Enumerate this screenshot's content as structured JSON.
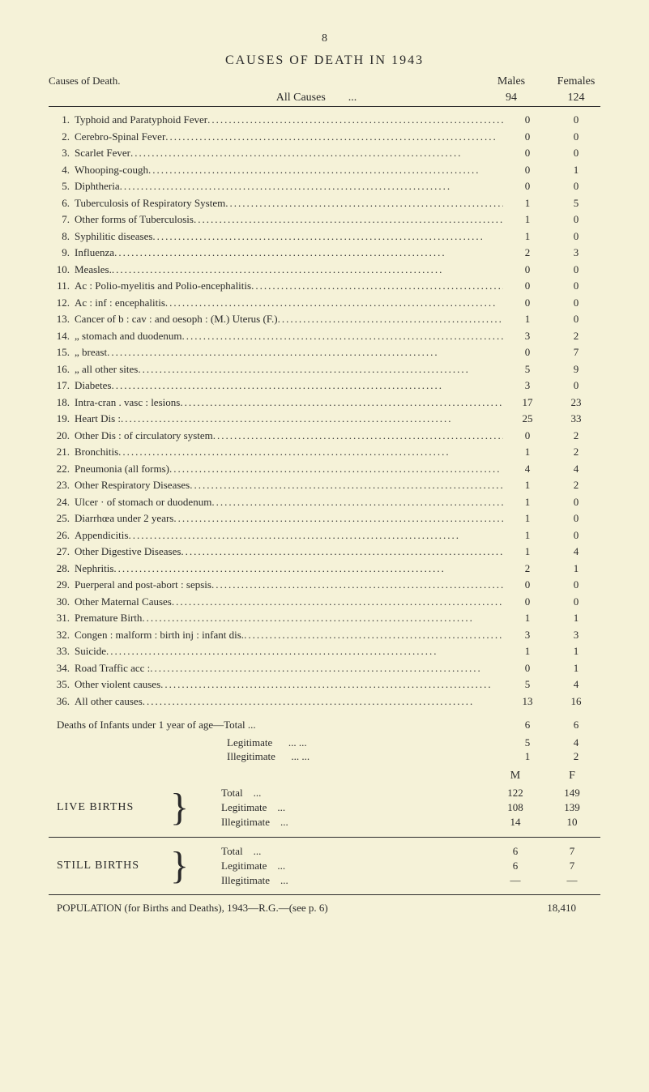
{
  "pageNumber": "8",
  "title": "CAUSES OF DEATH IN 1943",
  "causesLabel": "Causes of Death.",
  "colMales": "Males",
  "colFemales": "Females",
  "allCausesLabel": "All Causes",
  "allCausesDots": "...",
  "allCausesMales": "94",
  "allCausesFemales": "124",
  "rows": [
    {
      "n": "1.",
      "d": "Typhoid and Paratyphoid Fever",
      "m": "0",
      "f": "0"
    },
    {
      "n": "2.",
      "d": "Cerebro-Spinal Fever",
      "m": "0",
      "f": "0"
    },
    {
      "n": "3.",
      "d": "Scarlet Fever",
      "m": "0",
      "f": "0"
    },
    {
      "n": "4.",
      "d": "Whooping-cough",
      "m": "0",
      "f": "1"
    },
    {
      "n": "5.",
      "d": "Diphtheria",
      "m": "0",
      "f": "0"
    },
    {
      "n": "6.",
      "d": "Tuberculosis of Respiratory System",
      "m": "1",
      "f": "5"
    },
    {
      "n": "7.",
      "d": "Other forms of Tuberculosis",
      "m": "1",
      "f": "0"
    },
    {
      "n": "8.",
      "d": "Syphilitic diseases",
      "m": "1",
      "f": "0"
    },
    {
      "n": "9.",
      "d": "Influenza",
      "m": "2",
      "f": "3"
    },
    {
      "n": "10.",
      "d": "Measles.",
      "m": "0",
      "f": "0"
    },
    {
      "n": "11.",
      "d": "Ac : Polio-myelitis and Polio-encephalitis",
      "m": "0",
      "f": "0"
    },
    {
      "n": "12.",
      "d": "Ac : inf : encephalitis",
      "m": "0",
      "f": "0"
    },
    {
      "n": "13.",
      "d": "Cancer of b : cav : and oesoph : (M.) Uterus (F.)",
      "m": "1",
      "f": "0"
    },
    {
      "n": "14.",
      "d": "   „       stomach and duodenum",
      "m": "3",
      "f": "2"
    },
    {
      "n": "15.",
      "d": "   „       breast",
      "m": "0",
      "f": "7"
    },
    {
      "n": "16.",
      "d": "   „       all other sites",
      "m": "5",
      "f": "9"
    },
    {
      "n": "17.",
      "d": "Diabetes",
      "m": "3",
      "f": "0"
    },
    {
      "n": "18.",
      "d": "Intra-cran . vasc : lesions",
      "m": "17",
      "f": "23"
    },
    {
      "n": "19.",
      "d": "Heart Dis :",
      "m": "25",
      "f": "33"
    },
    {
      "n": "20.",
      "d": "Other Dis : of circulatory system",
      "m": "0",
      "f": "2"
    },
    {
      "n": "21.",
      "d": "Bronchitis",
      "m": "1",
      "f": "2"
    },
    {
      "n": "22.",
      "d": "Pneumonia (all forms)",
      "m": "4",
      "f": "4"
    },
    {
      "n": "23.",
      "d": "Other Respiratory Diseases",
      "m": "1",
      "f": "2"
    },
    {
      "n": "24.",
      "d": "Ulcer · of stomach or duodenum",
      "m": "1",
      "f": "0"
    },
    {
      "n": "25.",
      "d": "Diarrhœa under 2 years",
      "m": "1",
      "f": "0"
    },
    {
      "n": "26.",
      "d": "Appendicitis",
      "m": "1",
      "f": "0"
    },
    {
      "n": "27.",
      "d": "Other Digestive Diseases",
      "m": "1",
      "f": "4"
    },
    {
      "n": "28.",
      "d": "Nephritis",
      "m": "2",
      "f": "1"
    },
    {
      "n": "29.",
      "d": "Puerperal and post-abort : sepsis",
      "m": "0",
      "f": "0"
    },
    {
      "n": "30.",
      "d": "Other Maternal Causes",
      "m": "0",
      "f": "0"
    },
    {
      "n": "31.",
      "d": "Premature Birth",
      "m": "1",
      "f": "1"
    },
    {
      "n": "32.",
      "d": "Congen : malform : birth inj : infant dis.",
      "m": "3",
      "f": "3"
    },
    {
      "n": "33.",
      "d": "Suicide",
      "m": "1",
      "f": "1"
    },
    {
      "n": "34.",
      "d": "Road Traffic acc :",
      "m": "0",
      "f": "1"
    },
    {
      "n": "35.",
      "d": "Other violent causes",
      "m": "5",
      "f": "4"
    },
    {
      "n": "36.",
      "d": "All other causes",
      "m": "13",
      "f": "16"
    }
  ],
  "deathsInfants": {
    "label": "Deaths of Infants under 1 year of age—Total ...",
    "m": "6",
    "f": "6",
    "legitimate": {
      "label": "Legitimate",
      "dots": "...   ...",
      "m": "5",
      "f": "4"
    },
    "illegitimate": {
      "label": "Illegitimate",
      "dots": "...   ...",
      "m": "1",
      "f": "2"
    }
  },
  "mfHeader": {
    "m": "M",
    "f": "F"
  },
  "liveBirths": {
    "label": "LIVE BIRTHS",
    "items": [
      {
        "label": "Total",
        "dots": "...",
        "m": "122",
        "f": "149"
      },
      {
        "label": "Legitimate",
        "dots": "...",
        "m": "108",
        "f": "139"
      },
      {
        "label": "Illegitimate",
        "dots": "...",
        "m": "14",
        "f": "10"
      }
    ]
  },
  "stillBirths": {
    "label": "STILL BIRTHS",
    "items": [
      {
        "label": "Total",
        "dots": "...",
        "m": "6",
        "f": "7"
      },
      {
        "label": "Legitimate",
        "dots": "...",
        "m": "6",
        "f": "7"
      },
      {
        "label": "Illegitimate",
        "dots": "...",
        "m": "—",
        "f": "—"
      }
    ]
  },
  "population": {
    "label": "POPULATION (for Births and Deaths), 1943—R.G.—(see p. 6)",
    "value": "18,410"
  }
}
